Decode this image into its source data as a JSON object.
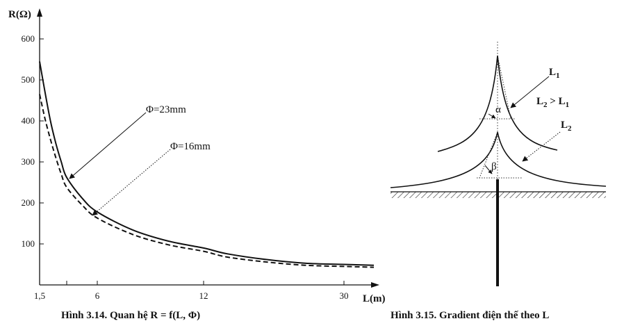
{
  "chart_data": [
    {
      "type": "line",
      "title": "",
      "caption": "Hình 3.14.  Quan hệ R = f(L, Φ)",
      "ylabel": "R(Ω)",
      "xlabel": "L(m)",
      "x_ticks": [
        "1,5",
        "6",
        "12",
        "30"
      ],
      "y_ticks": [
        "100",
        "200",
        "300",
        "400",
        "500",
        "600"
      ],
      "ylim": [
        0,
        650
      ],
      "series": [
        {
          "name": "Φ=23mm",
          "style": "solid",
          "x": [
            1.5,
            2,
            2.5,
            3,
            3.5,
            4,
            5,
            6,
            8,
            10,
            12,
            15,
            20,
            25,
            30,
            35
          ],
          "y": [
            545,
            470,
            400,
            345,
            300,
            262,
            212,
            178,
            134,
            107,
            90,
            76,
            62,
            53,
            50,
            48
          ]
        },
        {
          "name": "Φ=16mm",
          "style": "dashed",
          "x": [
            1.5,
            2,
            2.5,
            3,
            3.5,
            4,
            5,
            6,
            8,
            10,
            12,
            15,
            20,
            25,
            30,
            35
          ],
          "y": [
            465,
            405,
            355,
            310,
            270,
            238,
            195,
            163,
            123,
            98,
            82,
            68,
            56,
            48,
            45,
            43
          ]
        }
      ]
    },
    {
      "type": "diagram",
      "caption": "Hình 3.15.  Gradient điện thế theo L",
      "labels": {
        "l1": "L",
        "l1_sub": "1",
        "compare_a": "L",
        "compare_a_sub": "2",
        "compare_op": " > ",
        "compare_b": "L",
        "compare_b_sub": "1",
        "l2": "L",
        "l2_sub": "2",
        "alpha": "α",
        "beta": "β"
      }
    }
  ]
}
